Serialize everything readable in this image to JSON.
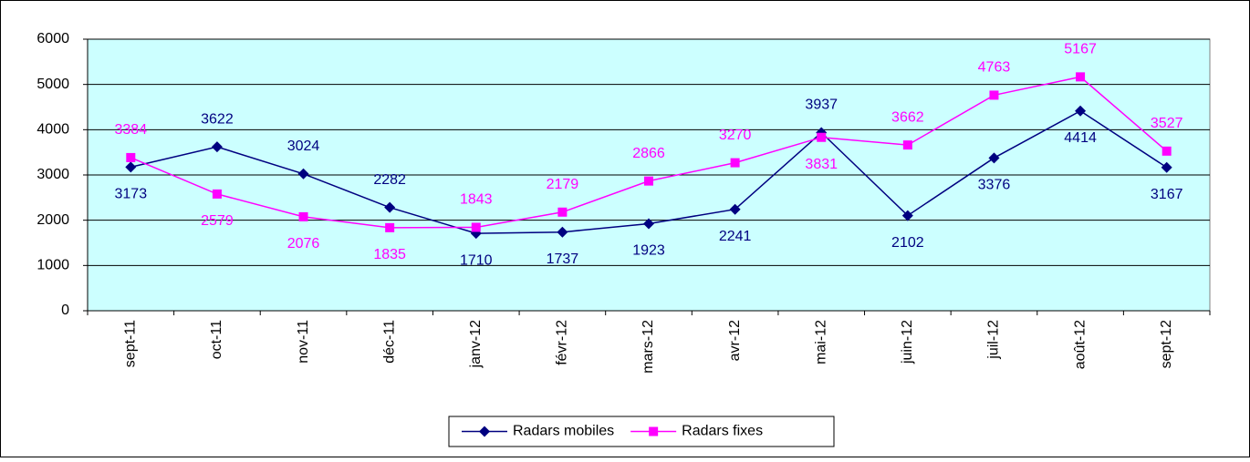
{
  "chart_data": {
    "type": "line",
    "categories": [
      "sept-11",
      "oct-11",
      "nov-11",
      "déc-11",
      "janv-12",
      "févr-12",
      "mars-12",
      "avr-12",
      "mai-12",
      "juin-12",
      "juil-12",
      "août-12",
      "sept-12"
    ],
    "series": [
      {
        "name": "Radars mobiles",
        "color": "#000080",
        "marker": "diamond",
        "values": [
          3173,
          3622,
          3024,
          2282,
          1710,
          1737,
          1923,
          2241,
          3937,
          2102,
          3376,
          4414,
          3167
        ]
      },
      {
        "name": "Radars fixes",
        "color": "#ff00ff",
        "marker": "square",
        "values": [
          3384,
          2579,
          2076,
          1835,
          1843,
          2179,
          2866,
          3270,
          3831,
          3662,
          4763,
          5167,
          3527
        ]
      }
    ],
    "ylim": [
      0,
      6000
    ],
    "yticks": [
      0,
      1000,
      2000,
      3000,
      4000,
      5000,
      6000
    ],
    "grid": true,
    "legend": "bottom",
    "plot_background": "#ccffff"
  }
}
